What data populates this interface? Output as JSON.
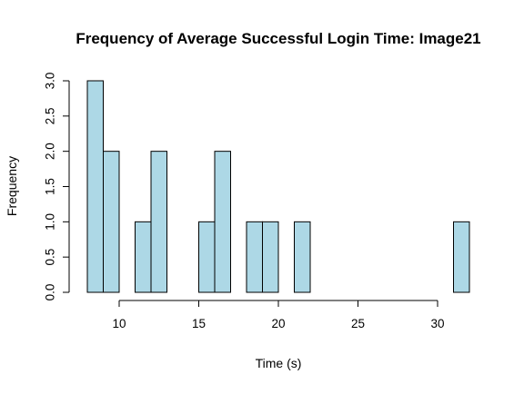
{
  "chart_data": {
    "type": "bar",
    "title": "Frequency of Average Successful Login Time: Image21",
    "xlabel": "Time (s)",
    "ylabel": "Frequency",
    "bin_width": 1,
    "bins": [
      {
        "start": 8,
        "end": 9,
        "count": 3
      },
      {
        "start": 9,
        "end": 10,
        "count": 2
      },
      {
        "start": 10,
        "end": 11,
        "count": 0
      },
      {
        "start": 11,
        "end": 12,
        "count": 1
      },
      {
        "start": 12,
        "end": 13,
        "count": 2
      },
      {
        "start": 13,
        "end": 14,
        "count": 0
      },
      {
        "start": 14,
        "end": 15,
        "count": 0
      },
      {
        "start": 15,
        "end": 16,
        "count": 1
      },
      {
        "start": 16,
        "end": 17,
        "count": 2
      },
      {
        "start": 17,
        "end": 18,
        "count": 0
      },
      {
        "start": 18,
        "end": 19,
        "count": 1
      },
      {
        "start": 19,
        "end": 20,
        "count": 1
      },
      {
        "start": 20,
        "end": 21,
        "count": 0
      },
      {
        "start": 21,
        "end": 22,
        "count": 1
      },
      {
        "start": 22,
        "end": 23,
        "count": 0
      },
      {
        "start": 23,
        "end": 24,
        "count": 0
      },
      {
        "start": 24,
        "end": 25,
        "count": 0
      },
      {
        "start": 25,
        "end": 26,
        "count": 0
      },
      {
        "start": 26,
        "end": 27,
        "count": 0
      },
      {
        "start": 27,
        "end": 28,
        "count": 0
      },
      {
        "start": 28,
        "end": 29,
        "count": 0
      },
      {
        "start": 29,
        "end": 30,
        "count": 0
      },
      {
        "start": 30,
        "end": 31,
        "count": 0
      },
      {
        "start": 31,
        "end": 32,
        "count": 1
      }
    ],
    "xlim": [
      8,
      32
    ],
    "ylim": [
      0,
      3
    ],
    "x_ticks": [
      10,
      15,
      20,
      25,
      30
    ],
    "x_tick_labels": [
      "10",
      "15",
      "20",
      "25",
      "30"
    ],
    "y_ticks": [
      0,
      0.5,
      1,
      1.5,
      2,
      2.5,
      3
    ],
    "y_tick_labels": [
      "0.0",
      "0.5",
      "1.0",
      "1.5",
      "2.0",
      "2.5",
      "3.0"
    ],
    "bar_fill": "#add8e6",
    "bar_stroke": "#000000",
    "grid": false
  }
}
